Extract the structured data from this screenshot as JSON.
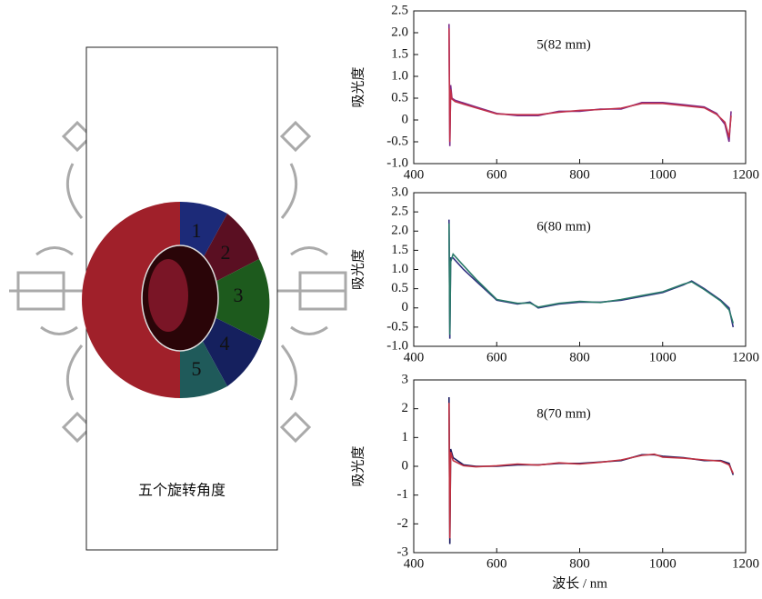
{
  "diagram": {
    "caption": "五个旋转角度",
    "sectors": [
      "1",
      "2",
      "3",
      "4",
      "5"
    ]
  },
  "chart_data": [
    {
      "type": "line",
      "annotation": "5(82 mm)",
      "ylabel": "吸光度",
      "x": [
        485,
        487,
        489,
        492,
        500,
        550,
        600,
        650,
        700,
        750,
        800,
        850,
        900,
        950,
        1000,
        1050,
        1100,
        1130,
        1150,
        1160,
        1165
      ],
      "series": [
        {
          "color": "#7a2a8a",
          "values": [
            2.2,
            -0.6,
            0.8,
            0.5,
            0.45,
            0.3,
            0.15,
            0.1,
            0.1,
            0.2,
            0.2,
            0.25,
            0.25,
            0.4,
            0.4,
            0.35,
            0.3,
            0.15,
            -0.1,
            -0.5,
            0.2
          ]
        },
        {
          "color": "#c0304a",
          "values": [
            2.1,
            -0.5,
            0.7,
            0.48,
            0.42,
            0.28,
            0.14,
            0.12,
            0.12,
            0.18,
            0.22,
            0.24,
            0.27,
            0.38,
            0.38,
            0.33,
            0.28,
            0.13,
            -0.05,
            -0.4,
            0.1
          ]
        }
      ],
      "xlim": [
        400,
        1200
      ],
      "xticks": [
        400,
        600,
        800,
        1000,
        1200
      ],
      "ylim": [
        -1,
        2.5
      ],
      "yticks": [
        {
          "value": -1,
          "label": "-1.0"
        },
        -0.5,
        0,
        0.5,
        {
          "value": 1,
          "label": "1.0"
        },
        1.5,
        {
          "value": 2,
          "label": "2.0"
        },
        2.5
      ]
    },
    {
      "type": "line",
      "annotation": "6(80 mm)",
      "ylabel": "吸光度",
      "x": [
        485,
        487,
        489,
        495,
        520,
        550,
        600,
        650,
        680,
        700,
        750,
        800,
        850,
        900,
        950,
        1000,
        1050,
        1070,
        1100,
        1140,
        1160,
        1170
      ],
      "series": [
        {
          "color": "#303080",
          "values": [
            2.3,
            -0.8,
            1.3,
            1.3,
            1.0,
            0.7,
            0.2,
            0.1,
            0.15,
            0,
            0.1,
            0.15,
            0.15,
            0.2,
            0.3,
            0.4,
            0.6,
            0.7,
            0.5,
            0.2,
            0,
            -0.5
          ]
        },
        {
          "color": "#2a7a6a",
          "values": [
            2.2,
            -0.7,
            1.2,
            1.4,
            1.1,
            0.75,
            0.22,
            0.12,
            0.13,
            0.02,
            0.12,
            0.17,
            0.14,
            0.22,
            0.32,
            0.42,
            0.62,
            0.68,
            0.48,
            0.18,
            -0.05,
            -0.4
          ]
        }
      ],
      "xlim": [
        400,
        1200
      ],
      "xticks": [
        400,
        600,
        800,
        1000,
        1200
      ],
      "ylim": [
        -1,
        3
      ],
      "yticks": [
        {
          "value": -1,
          "label": "-1.0"
        },
        -0.5,
        0,
        0.5,
        {
          "value": 1,
          "label": "1.0"
        },
        1.5,
        {
          "value": 2,
          "label": "2.0"
        },
        2.5,
        {
          "value": 3,
          "label": "3.0"
        }
      ]
    },
    {
      "type": "line",
      "annotation": "8(70 mm)",
      "ylabel": "吸光度",
      "xlabel": "波长 / nm",
      "x": [
        485,
        487,
        489,
        495,
        520,
        550,
        600,
        650,
        700,
        750,
        800,
        850,
        900,
        950,
        980,
        1000,
        1050,
        1100,
        1140,
        1160,
        1170
      ],
      "series": [
        {
          "color": "#1a1a60",
          "values": [
            2.4,
            -2.7,
            0.6,
            0.3,
            0.05,
            0,
            0,
            0.05,
            0.05,
            0.1,
            0.1,
            0.15,
            0.2,
            0.4,
            0.4,
            0.35,
            0.3,
            0.2,
            0.2,
            0.1,
            -0.3
          ]
        },
        {
          "color": "#c03040",
          "values": [
            2.2,
            -2.5,
            0.5,
            0.2,
            0.02,
            -0.02,
            0.02,
            0.08,
            0.04,
            0.12,
            0.08,
            0.14,
            0.22,
            0.38,
            0.42,
            0.32,
            0.28,
            0.22,
            0.18,
            0.05,
            -0.25
          ]
        }
      ],
      "xlim": [
        400,
        1200
      ],
      "xticks": [
        400,
        600,
        800,
        1000,
        1200
      ],
      "ylim": [
        -3,
        3
      ],
      "yticks": [
        -3,
        -2,
        -1,
        0,
        1,
        2,
        3
      ]
    }
  ]
}
